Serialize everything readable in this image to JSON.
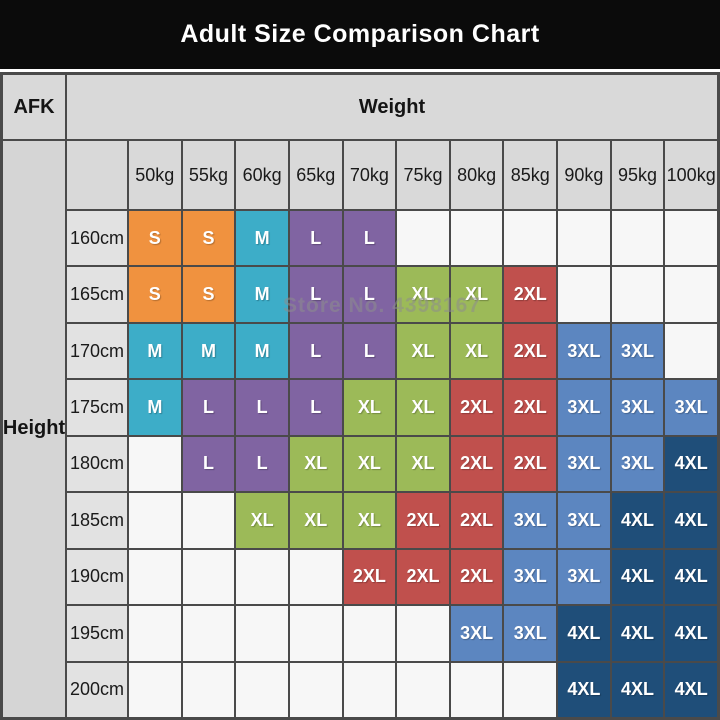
{
  "title": "Adult Size Comparison Chart",
  "watermark": "Store No. 4398167",
  "corner_label": "AFK",
  "weight_label": "Weight",
  "height_label": "Height",
  "size_colors": {
    "S": "#f0923f",
    "M": "#3dadc8",
    "L": "#8064a2",
    "XL": "#9cba58",
    "2XL": "#c0504d",
    "3XL": "#5c86c0",
    "4XL": "#1f4e79"
  },
  "chart_data": {
    "type": "table",
    "title": "Adult Size Comparison Chart",
    "column_group_label": "Weight",
    "row_group_label": "Height",
    "columns": [
      "50kg",
      "55kg",
      "60kg",
      "65kg",
      "70kg",
      "75kg",
      "80kg",
      "85kg",
      "90kg",
      "95kg",
      "100kg"
    ],
    "rows": [
      {
        "height": "160cm",
        "sizes": [
          "S",
          "S",
          "M",
          "L",
          "L",
          "",
          "",
          "",
          "",
          "",
          ""
        ]
      },
      {
        "height": "165cm",
        "sizes": [
          "S",
          "S",
          "M",
          "L",
          "L",
          "XL",
          "XL",
          "2XL",
          "",
          "",
          ""
        ]
      },
      {
        "height": "170cm",
        "sizes": [
          "M",
          "M",
          "M",
          "L",
          "L",
          "XL",
          "XL",
          "2XL",
          "3XL",
          "3XL",
          ""
        ]
      },
      {
        "height": "175cm",
        "sizes": [
          "M",
          "L",
          "L",
          "L",
          "XL",
          "XL",
          "2XL",
          "2XL",
          "3XL",
          "3XL",
          "3XL"
        ]
      },
      {
        "height": "180cm",
        "sizes": [
          "",
          "L",
          "L",
          "XL",
          "XL",
          "XL",
          "2XL",
          "2XL",
          "3XL",
          "3XL",
          "4XL"
        ]
      },
      {
        "height": "185cm",
        "sizes": [
          "",
          "",
          "XL",
          "XL",
          "XL",
          "2XL",
          "2XL",
          "3XL",
          "3XL",
          "4XL",
          "4XL"
        ]
      },
      {
        "height": "190cm",
        "sizes": [
          "",
          "",
          "",
          "",
          "2XL",
          "2XL",
          "2XL",
          "3XL",
          "3XL",
          "4XL",
          "4XL"
        ]
      },
      {
        "height": "195cm",
        "sizes": [
          "",
          "",
          "",
          "",
          "",
          "",
          "3XL",
          "3XL",
          "4XL",
          "4XL",
          "4XL"
        ]
      },
      {
        "height": "200cm",
        "sizes": [
          "",
          "",
          "",
          "",
          "",
          "",
          "",
          "",
          "4XL",
          "4XL",
          "4XL"
        ]
      }
    ]
  }
}
